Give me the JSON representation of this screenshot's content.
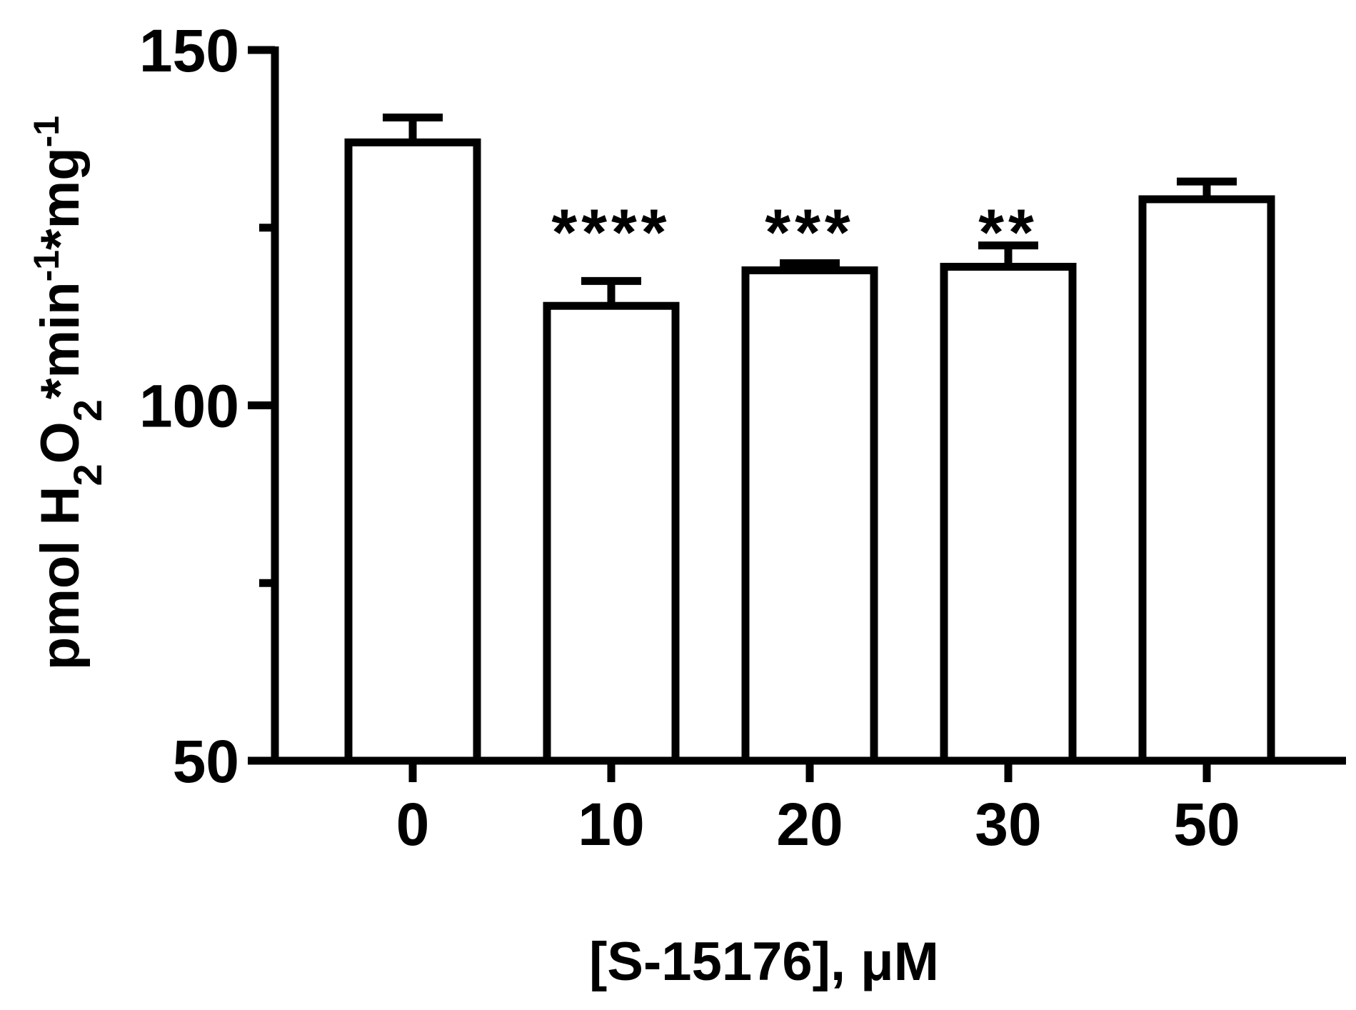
{
  "chart_data": {
    "type": "bar",
    "xlabel": "[S-15176], μM",
    "ylabel": {
      "parts": [
        {
          "text": "pmol H",
          "shift": "none"
        },
        {
          "text": "2",
          "shift": "sub"
        },
        {
          "text": "O",
          "shift": "none"
        },
        {
          "text": "2",
          "shift": "sub"
        },
        {
          "text": "*min",
          "shift": "none"
        },
        {
          "text": "-1",
          "shift": "super"
        },
        {
          "text": "*mg",
          "shift": "none"
        },
        {
          "text": "-1",
          "shift": "super"
        }
      ]
    },
    "categories": [
      "0",
      "10",
      "20",
      "30",
      "50"
    ],
    "values": [
      137,
      114,
      119,
      119.5,
      129
    ],
    "errors": [
      3.5,
      3.5,
      1,
      3,
      2.5
    ],
    "significance": [
      "",
      "****",
      "***",
      "**",
      ""
    ],
    "ylim": [
      50,
      150
    ],
    "yticks_major": [
      50,
      100,
      150
    ],
    "yticks_minor": [
      75,
      125
    ],
    "grid": false,
    "bar_fill": "#ffffff",
    "stroke_color": "#000000"
  }
}
